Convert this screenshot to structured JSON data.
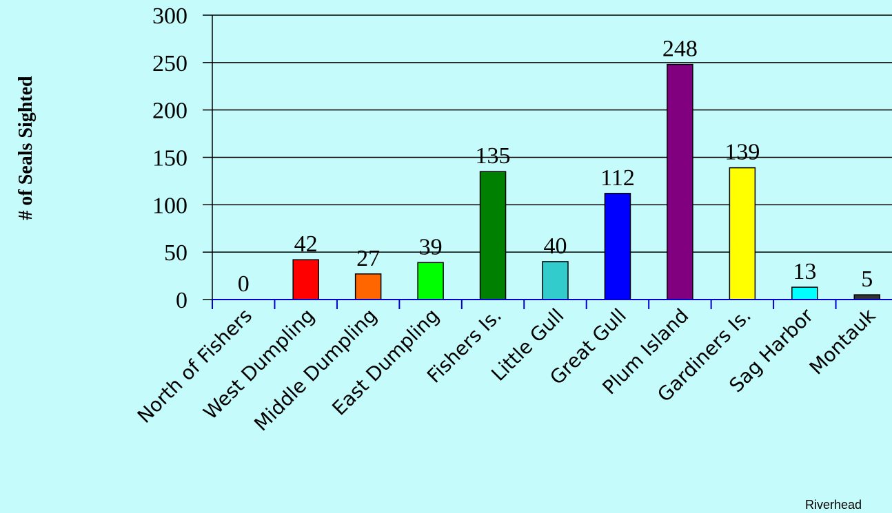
{
  "chart_data": {
    "type": "bar",
    "title": "",
    "xlabel": "",
    "ylabel": "# of Seals Sighted",
    "ylim": [
      0,
      300
    ],
    "yticks": [
      0,
      50,
      100,
      150,
      200,
      250,
      300
    ],
    "grid": true,
    "categories": [
      "North of Fishers",
      "West Dumpling",
      "Middle Dumpling",
      "East Dumpling",
      "Fishers Is.",
      "Little Gull",
      "Great Gull",
      "Plum Island",
      "Gardiners Is.",
      "Sag Harbor",
      "Montauk"
    ],
    "values": [
      0,
      42,
      27,
      39,
      135,
      40,
      112,
      248,
      139,
      13,
      5
    ],
    "colors": [
      "#ff0000",
      "#ff0000",
      "#ff6600",
      "#00ff00",
      "#008000",
      "#33cccc",
      "#0000ff",
      "#800080",
      "#ffff00",
      "#00ffff",
      "#333333"
    ]
  },
  "footer_note": "Riverhead"
}
